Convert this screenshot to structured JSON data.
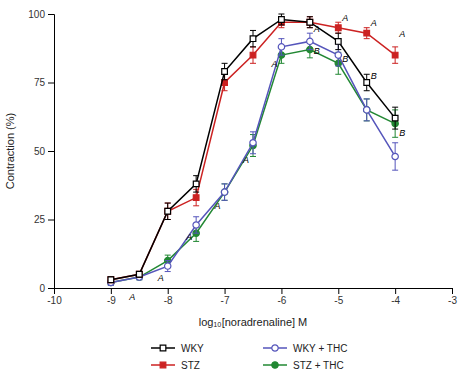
{
  "chart_data": {
    "type": "line",
    "x": [
      -9,
      -8.5,
      -8,
      -7.5,
      -7,
      -6.5,
      -6,
      -5.5,
      -5,
      -4.5,
      -4
    ],
    "xlabel": "log₁₀[noradrenaline] M",
    "ylabel": "Contraction (%)",
    "series": [
      {
        "name": "WKY",
        "color": "#000000",
        "marker": "square-open",
        "values": [
          3,
          5,
          28,
          38,
          79,
          91,
          98,
          97,
          90,
          75,
          62
        ],
        "errors": [
          1,
          1,
          3,
          3,
          3,
          3,
          2,
          2,
          3,
          3,
          4
        ]
      },
      {
        "name": "STZ",
        "color": "#cc2222",
        "marker": "square",
        "values": [
          3,
          5,
          28,
          33,
          75,
          85,
          97,
          97,
          95,
          93,
          85
        ],
        "errors": [
          1,
          1,
          3,
          3,
          3,
          3,
          2,
          2,
          2,
          2,
          3
        ]
      },
      {
        "name": "WKY + THC",
        "color": "#5555bb",
        "marker": "circle-open",
        "values": [
          2,
          4,
          8,
          23,
          35,
          53,
          88,
          90,
          85,
          65,
          48
        ],
        "errors": [
          1,
          1,
          2,
          3,
          3,
          4,
          3,
          3,
          4,
          4,
          5
        ]
      },
      {
        "name": "STZ + THC",
        "color": "#228833",
        "marker": "circle",
        "values": [
          2,
          4,
          10,
          20,
          35,
          52,
          85,
          87,
          82,
          65,
          60
        ],
        "errors": [
          1,
          1,
          2,
          3,
          3,
          4,
          3,
          3,
          4,
          4,
          5
        ]
      }
    ],
    "xlim": [
      -10,
      -3
    ],
    "ylim": [
      0,
      100
    ],
    "xticks": [
      -10,
      -9,
      -8,
      -7,
      -6,
      -5,
      -4,
      -3
    ],
    "yticks": [
      0,
      25,
      50,
      75,
      100
    ],
    "grid": false,
    "legend": "bottom",
    "annotations": [
      {
        "x": -8.5,
        "y": -2,
        "text": "A"
      },
      {
        "x": -8,
        "y": 5,
        "text": "A"
      },
      {
        "x": -7.5,
        "y": 20,
        "text": "A"
      },
      {
        "x": -7,
        "y": 31,
        "text": "A"
      },
      {
        "x": -6.5,
        "y": 48,
        "text": "A"
      },
      {
        "x": -6,
        "y": 83,
        "text": "A"
      },
      {
        "x": -5.5,
        "y": 93,
        "text": "A"
      },
      {
        "x": -5,
        "y": 97,
        "text": "A"
      },
      {
        "x": -4.5,
        "y": 95,
        "text": "A"
      },
      {
        "x": -4,
        "y": 91,
        "text": "A"
      },
      {
        "x": -5.5,
        "y": 88,
        "text": "B"
      },
      {
        "x": -5,
        "y": 85,
        "text": "B"
      },
      {
        "x": -4.5,
        "y": 79,
        "text": "B"
      },
      {
        "x": -4,
        "y": 58,
        "text": "B"
      }
    ]
  }
}
